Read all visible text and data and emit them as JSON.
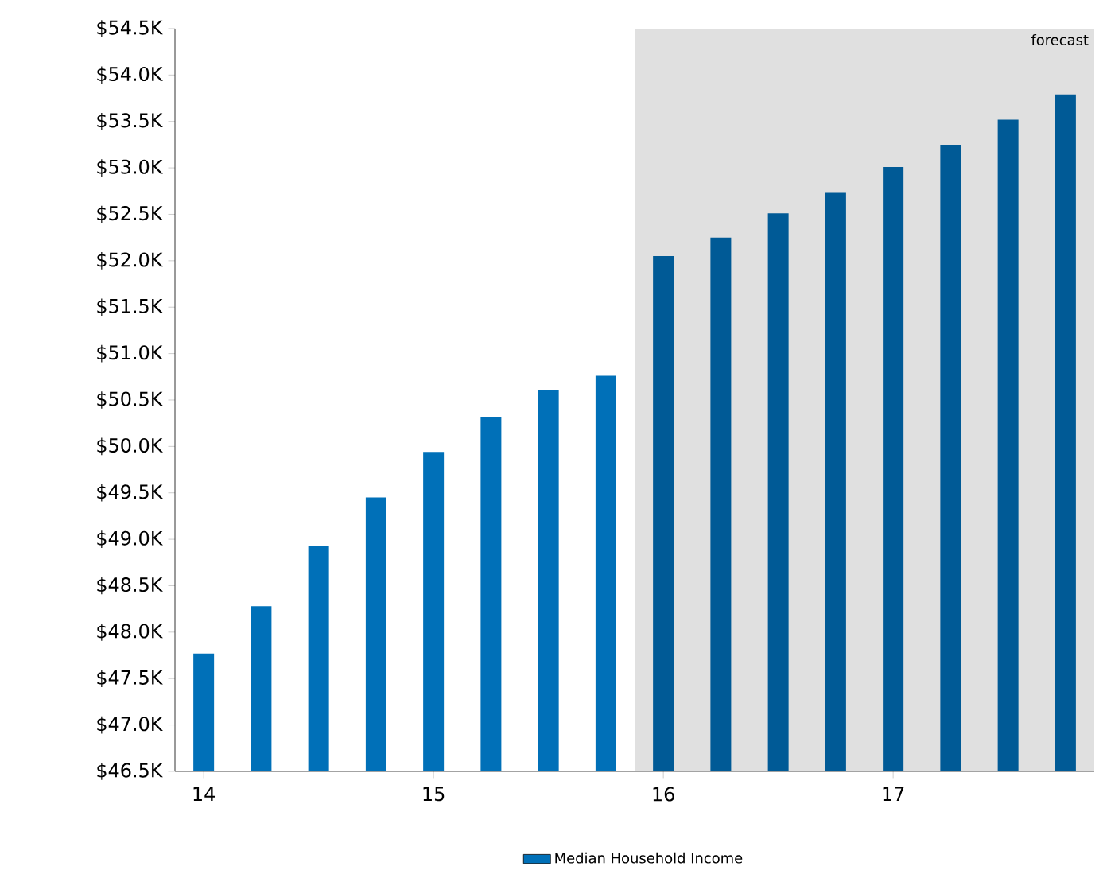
{
  "chart_data": {
    "type": "bar",
    "x": [
      14,
      14.25,
      14.5,
      14.75,
      15,
      15.25,
      15.5,
      15.75,
      16,
      16.25,
      16.5,
      16.75,
      17,
      17.25,
      17.5,
      17.75
    ],
    "series": [
      {
        "name": "Median Household Income",
        "color": "#0070b8",
        "colors": [
          "#0070b8",
          "#0070b8",
          "#0070b8",
          "#0070b8",
          "#0070b8",
          "#0070b8",
          "#0070b8",
          "#0070b8",
          "#005a96",
          "#005a96",
          "#005a96",
          "#005a96",
          "#005a96",
          "#005a96",
          "#005a96",
          "#005a96"
        ],
        "values": [
          47.77,
          48.28,
          48.93,
          49.45,
          49.94,
          50.32,
          50.61,
          50.76,
          52.05,
          52.25,
          52.51,
          52.73,
          53.01,
          53.25,
          53.52,
          53.79
        ]
      }
    ],
    "xlim": [
      13.875,
      17.875
    ],
    "xticks": [
      14,
      15,
      16,
      17
    ],
    "ylim": [
      46.5,
      54.5
    ],
    "yticks": [
      {
        "value": 46.5,
        "label": "$46.5K"
      },
      {
        "value": 47,
        "label": "$47.0K"
      },
      {
        "value": 47.5,
        "label": "$47.5K"
      },
      {
        "value": 48,
        "label": "$48.0K"
      },
      {
        "value": 48.5,
        "label": "$48.5K"
      },
      {
        "value": 49,
        "label": "$49.0K"
      },
      {
        "value": 49.5,
        "label": "$49.5K"
      },
      {
        "value": 50,
        "label": "$50.0K"
      },
      {
        "value": 50.5,
        "label": "$50.5K"
      },
      {
        "value": 51,
        "label": "$51.0K"
      },
      {
        "value": 51.5,
        "label": "$51.5K"
      },
      {
        "value": 52,
        "label": "$52.0K"
      },
      {
        "value": 52.5,
        "label": "$52.5K"
      },
      {
        "value": 53,
        "label": "$53.0K"
      },
      {
        "value": 53.5,
        "label": "$53.5K"
      },
      {
        "value": 54,
        "label": "$54.0K"
      },
      {
        "value": 54.5,
        "label": "$54.5K"
      }
    ],
    "bands": [
      {
        "axis": "x",
        "from": 15.875,
        "to": 17.875,
        "label": "forecast",
        "color": "#e0e0e0"
      }
    ],
    "grid": false,
    "legend": "bottom"
  }
}
